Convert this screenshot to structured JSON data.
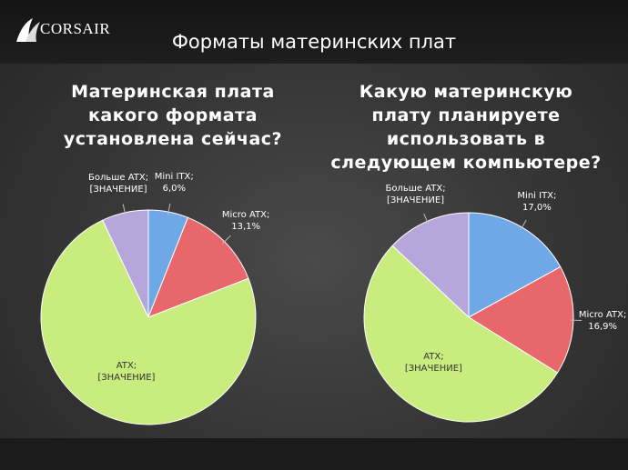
{
  "header": {
    "logo": "CORSAIR",
    "title": "Форматы материнских плат"
  },
  "chart_data": [
    {
      "type": "pie",
      "title": "Материнская плата какого формата установлена сейчас?",
      "categories": [
        "Mini ITX;",
        "Micro ATX;",
        "ATX;",
        "Больше ATX;"
      ],
      "values": [
        6.0,
        13.1,
        73.9,
        7.0
      ],
      "value_labels": [
        "6,0%",
        "13,1%",
        "[ЗНАЧЕНИЕ]",
        "[ЗНАЧЕНИЕ]"
      ],
      "colors": [
        "#6fa8e6",
        "#e8676a",
        "#c8ec7e",
        "#b7a6dc"
      ]
    },
    {
      "type": "pie",
      "title": "Какую материнскую плату планируете использовать в следующем компьютере?",
      "categories": [
        "Mini ITX;",
        "Micro ATX;",
        "ATX;",
        "Больше ATX;"
      ],
      "values": [
        17.0,
        16.9,
        53.1,
        13.0
      ],
      "value_labels": [
        "17,0%",
        "16,9%",
        "[ЗНАЧЕНИЕ]",
        "[ЗНАЧЕНИЕ]"
      ],
      "colors": [
        "#6fa8e6",
        "#e8676a",
        "#c8ec7e",
        "#b7a6dc"
      ]
    }
  ]
}
